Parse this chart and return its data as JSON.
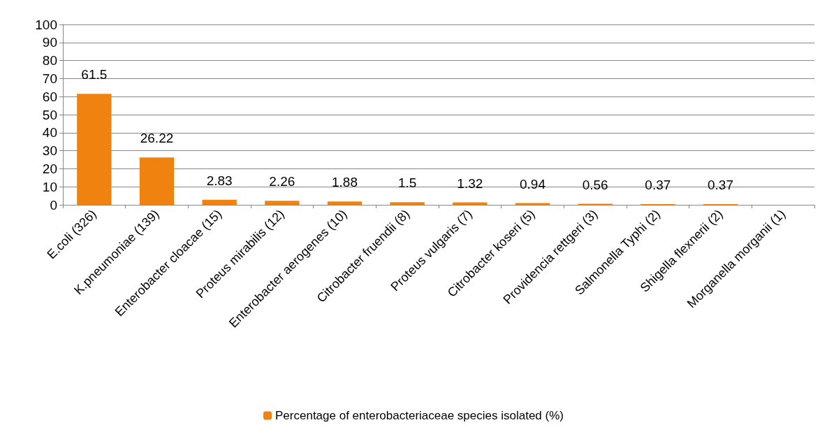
{
  "chart_data": {
    "type": "bar",
    "categories": [
      "E.coli (326)",
      "K.pneumoniae (139)",
      "Enterobacter cloacae (15)",
      "Proteus mirabilis (12)",
      "Enterobacter aerogenes (10)",
      "Citrobacter fruendii (8)",
      "Proteus vulgaris (7)",
      "Citrobacter koseri (5)",
      "Providencia rettgeri (3)",
      "Salmonella Typhi (2)",
      "Shigella flexnerii (2)",
      "Morganella morganii (1)"
    ],
    "series": [
      {
        "name": "Percentage of enterobacteriaceae species isolated (%)",
        "color": "#f0820f",
        "values": [
          61.5,
          26.22,
          2.83,
          2.26,
          1.88,
          1.5,
          1.32,
          0.94,
          0.56,
          0.37,
          0.37,
          null
        ],
        "value_labels": [
          "61.5",
          "26.22",
          "2.83",
          "2.26",
          "1.88",
          "1.5",
          "1.32",
          "0.94",
          "0.56",
          "0.37",
          "0.37",
          null
        ]
      }
    ],
    "ylim": [
      0,
      100
    ],
    "yticks": [
      0,
      10,
      20,
      30,
      40,
      50,
      60,
      70,
      80,
      90,
      100
    ],
    "grid": "y",
    "legend": "bottom"
  }
}
